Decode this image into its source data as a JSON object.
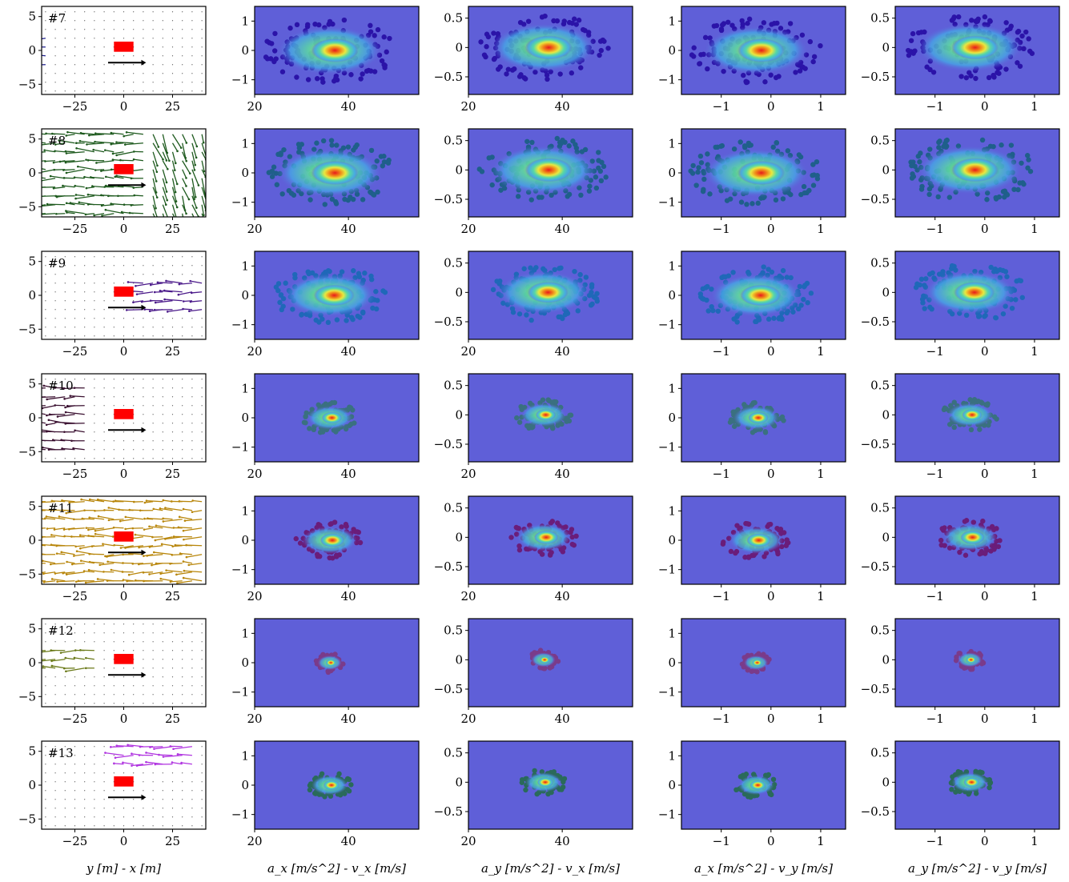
{
  "colors": {
    "kde_background": "#5f5fd8",
    "frame": "#000000",
    "vehicle": "#ff0000",
    "heading_arrow": "#000000"
  },
  "column_xlabels": [
    "y [m] - x [m]",
    "a_x [m/s^2] - v_x [m/s]",
    "a_y [m/s^2] - v_x [m/s]",
    "a_x [m/s^2] - v_y [m/s]",
    "a_y [m/s^2] - v_y [m/s]"
  ],
  "rows": [
    {
      "label": "#7",
      "quiver_color": "#1a1a8a",
      "scatter_color": "#2b13a8"
    },
    {
      "label": "#8",
      "quiver_color": "#1e5a1e",
      "scatter_color": "#1f5f8a"
    },
    {
      "label": "#9",
      "quiver_color": "#4b1a8a",
      "scatter_color": "#1f68b8"
    },
    {
      "label": "#10",
      "quiver_color": "#3a1030",
      "scatter_color": "#3a7080"
    },
    {
      "label": "#11",
      "quiver_color": "#b8860b",
      "scatter_color": "#6a1d7a"
    },
    {
      "label": "#12",
      "quiver_color": "#6b7a1a",
      "scatter_color": "#7a3b8a"
    },
    {
      "label": "#13",
      "quiver_color": "#b034e0",
      "scatter_color": "#2a6a5a"
    }
  ],
  "chart_data": [
    {
      "type": "quiver",
      "panel": "column-1",
      "xlabel": "y [m] - x [m]",
      "xlim": [
        -42,
        42
      ],
      "ylim": [
        -6.5,
        6.5
      ],
      "xticks": [
        -25,
        0,
        25
      ],
      "yticks": [
        -5,
        0,
        5
      ],
      "quiver_regions": {
        "#7": {
          "x": [
            -40,
            -38
          ],
          "y": [
            -3,
            2
          ]
        },
        "#8": {
          "x": [
            -40,
            40
          ],
          "y": [
            -6,
            6
          ]
        },
        "#9": {
          "x": [
            10,
            40
          ],
          "y": [
            -3,
            3
          ]
        },
        "#10": {
          "x": [
            -40,
            -20
          ],
          "y": [
            -5,
            5
          ]
        },
        "#11": {
          "x": [
            -40,
            40
          ],
          "y": [
            -6,
            6
          ]
        },
        "#12": {
          "x": [
            -40,
            -15
          ],
          "y": [
            -2,
            2
          ]
        },
        "#13": {
          "x": [
            0,
            38
          ],
          "y": [
            2,
            6
          ]
        }
      }
    },
    {
      "type": "kde-scatter",
      "panel": "column-2",
      "xlabel": "a_x [m/s^2] - v_x [m/s]",
      "xlim": [
        20,
        55
      ],
      "ylim": [
        -1.5,
        1.5
      ],
      "xticks": [
        20,
        40
      ],
      "yticks": [
        -1,
        0,
        1
      ]
    },
    {
      "type": "kde-scatter",
      "panel": "column-3",
      "xlabel": "a_y [m/s^2] - v_x [m/s]",
      "xlim": [
        20,
        55
      ],
      "ylim": [
        -0.8,
        0.7
      ],
      "xticks": [
        20,
        40
      ],
      "yticks": [
        -0.5,
        0.0,
        0.5
      ]
    },
    {
      "type": "kde-scatter",
      "panel": "column-4",
      "xlabel": "a_x [m/s^2] - v_y [m/s]",
      "xlim": [
        -1.8,
        1.5
      ],
      "ylim": [
        -1.5,
        1.5
      ],
      "xticks": [
        -1,
        0,
        1
      ],
      "yticks": [
        -1,
        0,
        1
      ]
    },
    {
      "type": "kde-scatter",
      "panel": "column-5",
      "xlabel": "a_y [m/s^2] - v_y [m/s]",
      "xlim": [
        -1.8,
        1.5
      ],
      "ylim": [
        -0.8,
        0.7
      ],
      "xticks": [
        -1,
        0,
        1
      ],
      "yticks": [
        -0.5,
        0.0,
        0.5
      ]
    }
  ]
}
